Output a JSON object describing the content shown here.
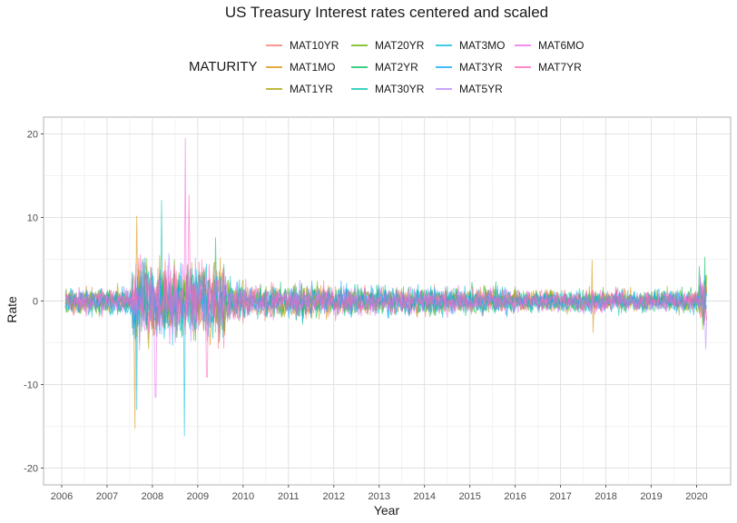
{
  "chart_data": {
    "type": "line",
    "title": "US Treasury Interest rates centered and scaled",
    "xlabel": "Year",
    "ylabel": "Rate",
    "xlim": [
      2005.6,
      2020.75
    ],
    "ylim": [
      -22,
      22
    ],
    "x_ticks": [
      "2006",
      "2007",
      "2008",
      "2009",
      "2010",
      "2011",
      "2012",
      "2013",
      "2014",
      "2015",
      "2016",
      "2017",
      "2018",
      "2019",
      "2020"
    ],
    "y_ticks": [
      -20,
      -10,
      0,
      10,
      20
    ],
    "grid": true,
    "legend": {
      "title": "MATURITY",
      "placement": "top",
      "entries": [
        "MAT10YR",
        "MAT1MO",
        "MAT1YR",
        "MAT20YR",
        "MAT2YR",
        "MAT30YR",
        "MAT3MO",
        "MAT3YR",
        "MAT5YR",
        "MAT6MO",
        "MAT7YR"
      ]
    },
    "series": [
      {
        "name": "MAT10YR",
        "color": "#F8766D"
      },
      {
        "name": "MAT1MO",
        "color": "#DB8E00"
      },
      {
        "name": "MAT1YR",
        "color": "#AEA200"
      },
      {
        "name": "MAT20YR",
        "color": "#64B200"
      },
      {
        "name": "MAT2YR",
        "color": "#00BD5C"
      },
      {
        "name": "MAT30YR",
        "color": "#00C1A7"
      },
      {
        "name": "MAT3MO",
        "color": "#00BADE"
      },
      {
        "name": "MAT3YR",
        "color": "#00A6FF"
      },
      {
        "name": "MAT5YR",
        "color": "#B385FF"
      },
      {
        "name": "MAT6MO",
        "color": "#EF67EB"
      },
      {
        "name": "MAT7YR",
        "color": "#FF63B6"
      }
    ],
    "notable_spikes": [
      {
        "x": 2007.62,
        "y": -15.3,
        "series": "MAT1MO"
      },
      {
        "x": 2007.65,
        "y": 10.2,
        "series": "MAT1MO"
      },
      {
        "x": 2007.66,
        "y": -13.0,
        "series": "MAT3MO"
      },
      {
        "x": 2008.07,
        "y": -11.5,
        "series": "MAT6MO"
      },
      {
        "x": 2008.2,
        "y": 12.1,
        "series": "MAT30YR"
      },
      {
        "x": 2008.72,
        "y": 19.5,
        "series": "MAT6MO"
      },
      {
        "x": 2008.7,
        "y": -16.2,
        "series": "MAT3MO"
      },
      {
        "x": 2008.8,
        "y": 12.7,
        "series": "MAT7YR"
      },
      {
        "x": 2009.2,
        "y": -9.1,
        "series": "MAT7YR"
      },
      {
        "x": 2009.4,
        "y": 7.6,
        "series": "MAT2YR"
      },
      {
        "x": 2017.7,
        "y": 4.9,
        "series": "MAT1MO"
      },
      {
        "x": 2017.72,
        "y": -3.8,
        "series": "MAT1MO"
      },
      {
        "x": 2020.18,
        "y": 5.3,
        "series": "MAT2YR"
      },
      {
        "x": 2020.2,
        "y": -5.8,
        "series": "MAT5YR"
      }
    ]
  }
}
